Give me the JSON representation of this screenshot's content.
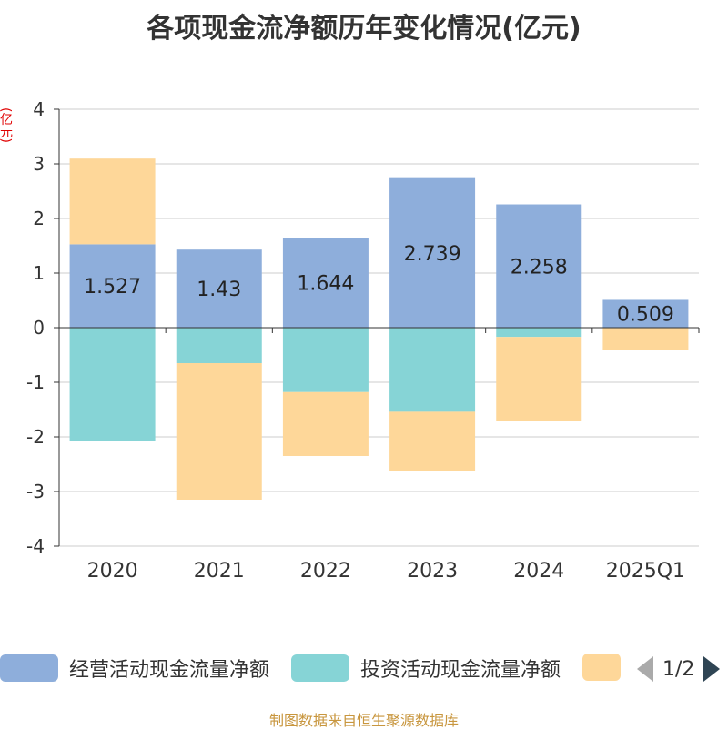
{
  "chart_data": {
    "type": "bar",
    "stacked": true,
    "title": "各项现金流净额历年变化情况(亿元)",
    "ylabel": "(亿元)",
    "categories": [
      "2020",
      "2021",
      "2022",
      "2023",
      "2024",
      "2025Q1"
    ],
    "ylim": [
      -4,
      4
    ],
    "yticks": [
      4,
      3,
      2,
      1,
      0,
      -1,
      -2,
      -3,
      -4
    ],
    "series": [
      {
        "name": "经营活动现金流量净额",
        "color": "#8eaedb",
        "values": [
          1.527,
          1.43,
          1.644,
          2.739,
          2.258,
          0.509
        ],
        "labels": [
          "1.527",
          "1.43",
          "1.644",
          "2.739",
          "2.258",
          "0.509"
        ]
      },
      {
        "name": "投资活动现金流量净额",
        "color": "#86d4d6",
        "values": [
          -2.07,
          -0.65,
          -1.18,
          -1.54,
          -0.17,
          0.0
        ]
      },
      {
        "name": "",
        "color": "#fed799",
        "values": [
          1.57,
          -2.5,
          -1.17,
          -1.08,
          -1.54,
          -0.4
        ]
      }
    ]
  },
  "legend": {
    "page": "1/2"
  },
  "source": "制图数据来自恒生聚源数据库"
}
